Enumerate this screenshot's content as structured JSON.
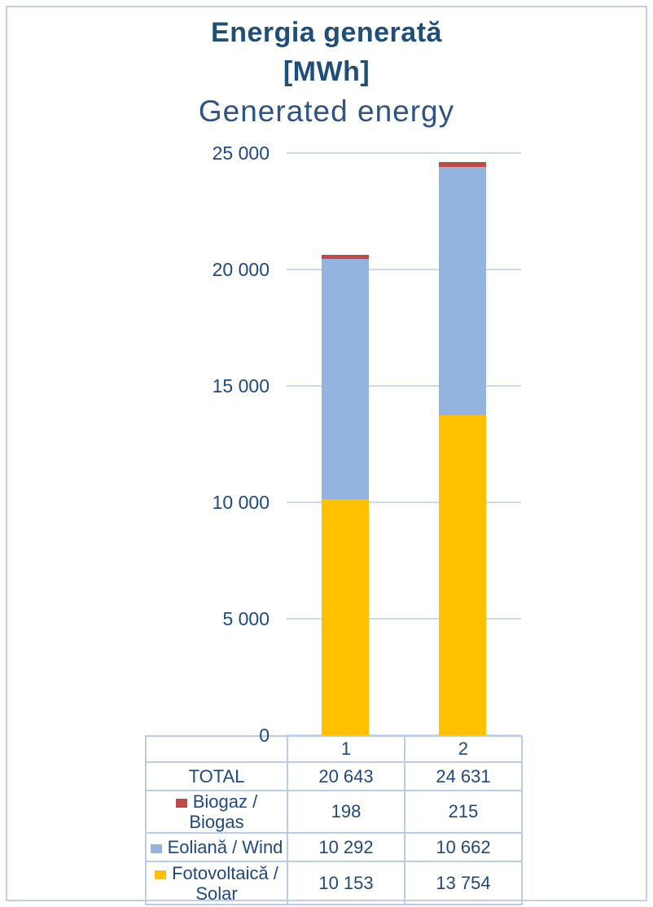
{
  "header": {
    "title_line1": "Energia generată",
    "title_line2": "[MWh]",
    "subtitle": "Generated energy"
  },
  "chart_data": {
    "type": "bar",
    "stacked": true,
    "title": "Energia generată [MWh]",
    "subtitle": "Generated energy",
    "unit": "MWh",
    "categories": [
      "1",
      "2"
    ],
    "series": [
      {
        "name": "Fotovoltaică / Solar",
        "color": "#FFC000",
        "values": [
          10153,
          13754
        ]
      },
      {
        "name": "Eoliană / Wind",
        "color": "#92B4DF",
        "values": [
          10292,
          10662
        ]
      },
      {
        "name": "Biogaz / Biogas",
        "color": "#BE4B48",
        "values": [
          198,
          215
        ]
      }
    ],
    "totals": [
      20643,
      24631
    ],
    "ylim": [
      0,
      25000
    ],
    "y_ticks": [
      0,
      5000,
      10000,
      15000,
      20000,
      25000
    ],
    "y_tick_labels": [
      "0",
      "5 000",
      "10 000",
      "15 000",
      "20 000",
      "25 000"
    ],
    "grid": true,
    "legend_position": "table-below-left-column"
  },
  "table": {
    "category_header": [
      "1",
      "2"
    ],
    "rows": [
      {
        "label": "TOTAL",
        "swatch": "",
        "values": [
          "20 643",
          "24 631"
        ]
      },
      {
        "label": "Biogaz / Biogas",
        "swatch": "#BE4B48",
        "values": [
          "198",
          "215"
        ]
      },
      {
        "label": "Eoliană / Wind",
        "swatch": "#92B4DF",
        "values": [
          "10 292",
          "10 662"
        ]
      },
      {
        "label": "Fotovoltaică / Solar",
        "swatch": "#FFC000",
        "values": [
          "10 153",
          "13 754"
        ]
      }
    ]
  },
  "colors": {
    "title": "#1F4E79",
    "subtitle": "#2E5486",
    "axis_text": "#1F497D",
    "gridline": "#CCDAEB",
    "table_border": "#B9CDE6",
    "page_border": "#C4CEE0",
    "solar": "#FFC000",
    "wind": "#92B4DF",
    "biogas": "#BE4B48"
  }
}
